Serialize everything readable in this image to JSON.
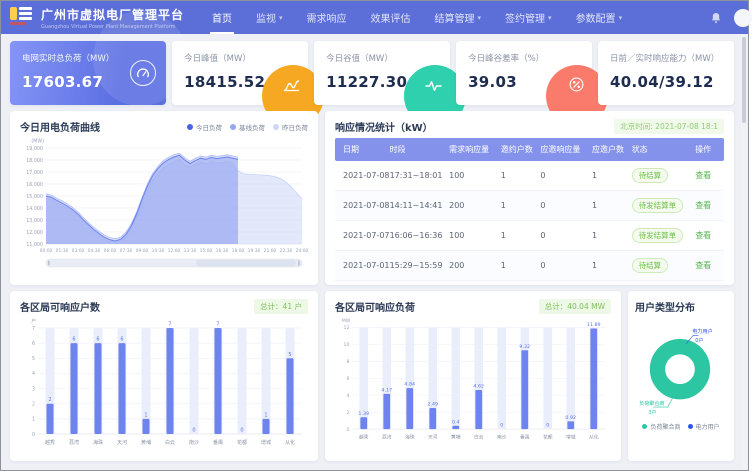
{
  "app": {
    "title": "广州市虚拟电厂管理平台",
    "subtitle": "Guangzhou Virtual Power Plant Management Platform"
  },
  "header": {
    "nav": [
      {
        "label": "首页",
        "active": true,
        "dropdown": false
      },
      {
        "label": "监视",
        "active": false,
        "dropdown": true
      },
      {
        "label": "需求响应",
        "active": false,
        "dropdown": false
      },
      {
        "label": "效果评估",
        "active": false,
        "dropdown": false
      },
      {
        "label": "结算管理",
        "active": false,
        "dropdown": true
      },
      {
        "label": "签约管理",
        "active": false,
        "dropdown": true
      },
      {
        "label": "参数配置",
        "active": false,
        "dropdown": true
      }
    ]
  },
  "kpis": [
    {
      "label": "电网实时总负荷（MW）",
      "value": "17603.67",
      "icon": "gauge-icon",
      "variant": "primary",
      "accent": "#6d7ff0"
    },
    {
      "label": "今日峰值（MW）",
      "value": "18415.52",
      "icon": "peak-curve-icon",
      "variant": "plain",
      "accent": "#f7a823"
    },
    {
      "label": "今日谷值（MW）",
      "value": "11227.30",
      "icon": "pulse-icon",
      "variant": "plain",
      "accent": "#2ed0ae"
    },
    {
      "label": "今日峰谷差率（%）",
      "value": "39.03",
      "icon": "percent-icon",
      "variant": "plain",
      "accent": "#fa7b6b"
    },
    {
      "label": "日前／实时响应能力（MW）",
      "value": "40.04/39.12",
      "icon": "",
      "variant": "plain",
      "accent": ""
    }
  ],
  "load_panel": {
    "title": "今日用电负荷曲线"
  },
  "response_panel": {
    "title": "响应情况统计（kW）",
    "time_badge": "北京时间: 2021-07-08 18:1",
    "columns": [
      "日期",
      "时段",
      "需求响应量",
      "邀约户数",
      "应邀响应量",
      "应邀户数",
      "状态",
      "操作"
    ],
    "column_keys": [
      "date",
      "period",
      "demand",
      "invited-users",
      "responded",
      "responded-users",
      "status",
      "action"
    ],
    "rows": [
      [
        "2021-07-08",
        "17:31~18:01",
        "100",
        "1",
        "0",
        "1",
        "待结算",
        "查看"
      ],
      [
        "2021-07-08",
        "14:11~14:41",
        "200",
        "1",
        "0",
        "1",
        "待发结算单",
        "查看"
      ],
      [
        "2021-07-07",
        "16:06~16:36",
        "100",
        "1",
        "0",
        "1",
        "待发结算单",
        "查看"
      ],
      [
        "2021-07-01",
        "15:29~15:59",
        "200",
        "1",
        "0",
        "1",
        "待结算",
        "查看"
      ]
    ]
  },
  "households_panel": {
    "title": "各区局可响应户数",
    "total_badge": "总计：41 户"
  },
  "load_by_district_panel": {
    "title": "各区局可响应负荷",
    "total_badge": "总计：40.04 MW"
  },
  "user_type_panel": {
    "title": "用户类型分布"
  },
  "chart_data": [
    {
      "id": "load_curve",
      "type": "area",
      "title": "今日用电负荷曲线",
      "ylabel": "(MW)",
      "ylim": [
        11000,
        19000
      ],
      "ytick_step": 1000,
      "grid": true,
      "legend_position": "top-right",
      "x_ticks": [
        "00:00",
        "01:30",
        "03:00",
        "04:30",
        "06:00",
        "07:30",
        "09:00",
        "10:30",
        "12:00",
        "13:30",
        "15:00",
        "16:30",
        "18:00",
        "19:30",
        "21:00",
        "22:30",
        "24:00"
      ],
      "x_range_hours": [
        0,
        24
      ],
      "series": [
        {
          "name": "今日负荷",
          "color": "#6b82ee",
          "legend_color": "#4a63e0",
          "fill": "rgba(142,160,240,0.50)",
          "width": 1.0,
          "step_h": 0.5,
          "values": [
            15000,
            14880,
            14640,
            14420,
            14150,
            13850,
            13480,
            13020,
            12580,
            12180,
            11850,
            11550,
            11350,
            11250,
            11400,
            11800,
            12500,
            13500,
            14700,
            15800,
            16700,
            17300,
            17750,
            18050,
            18250,
            18400,
            18000,
            17700,
            17950,
            18150,
            18050,
            18220,
            18120,
            18180,
            18250,
            18150,
            18050
          ]
        },
        {
          "name": "基线负荷",
          "color": "#aab8f4",
          "legend_color": "#97a6f3",
          "fill": "rgba(177,189,246,0.45)",
          "width": 0.8,
          "step_h": 0.5,
          "values": [
            15180,
            15060,
            14820,
            14600,
            14330,
            14030,
            13660,
            13200,
            12760,
            12360,
            12030,
            11730,
            11530,
            11430,
            11580,
            11980,
            12680,
            13680,
            14880,
            15980,
            16880,
            17480,
            17930,
            18230,
            18430,
            18560,
            18180,
            17880,
            18130,
            18330,
            18230,
            18400,
            18300,
            18360,
            18430,
            18330,
            18230
          ]
        },
        {
          "name": "昨日负荷",
          "color": "#c6d1f6",
          "legend_color": "#cdd7fb",
          "fill": "rgba(208,217,248,0.60)",
          "width": 0.8,
          "step_h": 0.5,
          "values": [
            14800,
            14680,
            14440,
            14220,
            13950,
            13650,
            13280,
            12820,
            12380,
            11980,
            11650,
            11380,
            11200,
            11150,
            11300,
            11650,
            12300,
            13250,
            14400,
            15450,
            16300,
            16900,
            17350,
            17650,
            17850,
            18000,
            17650,
            17400,
            17650,
            17800,
            17700,
            17850,
            17750,
            17800,
            17850,
            17750,
            17100,
            16850,
            16800,
            16780,
            16760,
            16730,
            16700,
            16600,
            16450,
            16150,
            15750,
            15250,
            14750
          ]
        }
      ],
      "datazoom_slider": true
    },
    {
      "id": "district_households",
      "type": "bar",
      "title": "各区局可响应户数",
      "total": "总计：41 户",
      "ylabel": "户",
      "ylim": [
        0,
        7
      ],
      "ytick_step": 1,
      "categories": [
        "越秀",
        "荔湾",
        "海珠",
        "天河",
        "黄埔",
        "白云",
        "南沙",
        "番禺",
        "花都",
        "增城",
        "从化"
      ],
      "values": [
        2,
        6,
        6,
        6,
        1,
        7,
        0,
        7,
        0,
        1,
        5
      ],
      "bar_color": "#6e82f0",
      "track_color": "#eaeefb",
      "label_color": "#5b74e8"
    },
    {
      "id": "district_load",
      "type": "bar",
      "title": "各区局可响应负荷",
      "total": "总计：40.04 MW",
      "ylabel": "MW",
      "ylim": [
        0,
        12
      ],
      "ytick_step": 2,
      "categories": [
        "越秀",
        "荔湾",
        "海珠",
        "天河",
        "黄埔",
        "白云",
        "南沙",
        "番禺",
        "花都",
        "增城",
        "从化"
      ],
      "values": [
        1.39,
        4.17,
        4.84,
        2.49,
        0.4,
        4.62,
        0,
        9.32,
        0,
        0.92,
        11.89
      ],
      "bar_color": "#6e82f0",
      "track_color": "#eaeefb",
      "label_color": "#5b74e8"
    },
    {
      "id": "user_type",
      "type": "pie",
      "title": "用户类型分布",
      "slices": [
        {
          "name": "负荷聚合商",
          "value": 3,
          "count_label": "3户",
          "color": "#2cc7a2"
        },
        {
          "name": "电力用户",
          "value": 0,
          "count_label": "0户",
          "color": "#2f54eb"
        }
      ],
      "legend_position": "bottom"
    }
  ]
}
